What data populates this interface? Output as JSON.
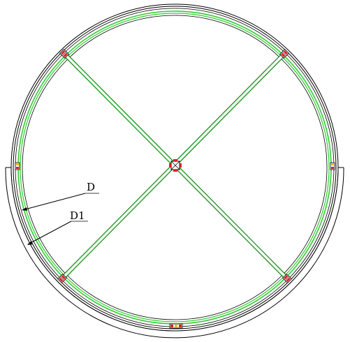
{
  "colors": {
    "outline": "#000000",
    "member": "#33cc33",
    "connector_red": "#e02020",
    "connector_yellow": "#e8c21e",
    "background": "#ffffff"
  },
  "labels": {
    "dim_inner": "D",
    "dim_outer": "D1"
  },
  "connectors": [
    {
      "name": "connector-top-left"
    },
    {
      "name": "connector-top-right"
    },
    {
      "name": "connector-bottom-left"
    },
    {
      "name": "connector-bottom-right"
    },
    {
      "name": "connector-center"
    },
    {
      "name": "connector-left"
    },
    {
      "name": "connector-right"
    },
    {
      "name": "connector-bottom"
    }
  ]
}
